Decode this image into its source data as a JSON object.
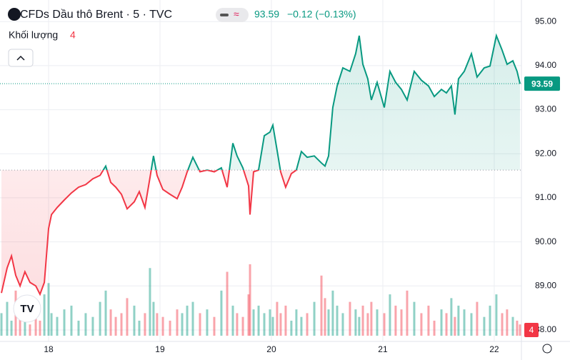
{
  "chart_data": {
    "type": "line",
    "title": "CFDs Dầu thô Brent · 5 · TVC",
    "price": 93.59,
    "change": "−0.12 (−0.13%)",
    "volume_title": "Khối lượng",
    "volume_current": 4,
    "baseline": 91.63,
    "up_color": "#089981",
    "down_color": "#f23645",
    "xlim": [
      17.564,
      22.244
    ],
    "xticks": [
      18,
      19,
      20,
      21,
      22
    ],
    "ylim": [
      87.74,
      95.49
    ],
    "yticks": [
      {
        "value": 88,
        "label": "88.00"
      },
      {
        "value": 89,
        "label": "89.00"
      },
      {
        "value": 90,
        "label": "90.00"
      },
      {
        "value": 91,
        "label": "91.00"
      },
      {
        "value": 92,
        "label": "92.00"
      },
      {
        "value": 93,
        "label": "93.00"
      },
      {
        "value": 94,
        "label": "94.00"
      },
      {
        "value": 95,
        "label": "95.00"
      }
    ],
    "grid": true,
    "x": [
      17.577,
      17.628,
      17.667,
      17.705,
      17.744,
      17.788,
      17.833,
      17.885,
      17.923,
      17.962,
      18.0,
      18.026,
      18.077,
      18.141,
      18.205,
      18.269,
      18.333,
      18.397,
      18.462,
      18.513,
      18.558,
      18.603,
      18.654,
      18.705,
      18.769,
      18.814,
      18.865,
      18.91,
      18.942,
      18.974,
      19.026,
      19.09,
      19.154,
      19.199,
      19.244,
      19.295,
      19.359,
      19.423,
      19.487,
      19.551,
      19.603,
      19.654,
      19.692,
      19.744,
      19.795,
      19.808,
      19.84,
      19.885,
      19.936,
      19.987,
      20.013,
      20.051,
      20.083,
      20.128,
      20.179,
      20.224,
      20.269,
      20.321,
      20.385,
      20.449,
      20.481,
      20.513,
      20.551,
      20.59,
      20.641,
      20.705,
      20.756,
      20.788,
      20.821,
      20.865,
      20.897,
      20.949,
      21.013,
      21.064,
      21.115,
      21.167,
      21.218,
      21.282,
      21.346,
      21.41,
      21.462,
      21.526,
      21.571,
      21.615,
      21.647,
      21.679,
      21.731,
      21.795,
      21.846,
      21.91,
      21.962,
      22.019,
      22.071,
      22.115,
      22.167,
      22.205,
      22.231
    ],
    "series": [
      {
        "name": "Price",
        "values": [
          88.84,
          89.41,
          89.68,
          89.24,
          89.0,
          89.32,
          89.08,
          89.0,
          88.81,
          89.08,
          90.3,
          90.62,
          90.78,
          90.95,
          91.11,
          91.24,
          91.3,
          91.43,
          91.51,
          91.72,
          91.35,
          91.24,
          91.08,
          90.75,
          90.91,
          91.14,
          90.78,
          91.46,
          91.95,
          91.51,
          91.19,
          91.08,
          90.98,
          91.24,
          91.59,
          91.92,
          91.59,
          91.63,
          91.59,
          91.68,
          91.24,
          92.24,
          91.95,
          91.68,
          91.27,
          90.62,
          91.59,
          91.63,
          92.41,
          92.49,
          92.65,
          92.08,
          91.59,
          91.24,
          91.55,
          91.63,
          92.05,
          91.92,
          91.95,
          91.79,
          91.72,
          91.95,
          93.05,
          93.54,
          93.95,
          93.87,
          94.27,
          94.68,
          94.03,
          93.7,
          93.22,
          93.62,
          93.05,
          93.87,
          93.62,
          93.46,
          93.22,
          93.87,
          93.67,
          93.54,
          93.3,
          93.46,
          93.38,
          93.54,
          92.89,
          93.7,
          93.87,
          94.27,
          93.74,
          93.95,
          93.99,
          94.68,
          94.35,
          94.03,
          94.11,
          93.87,
          93.59
        ]
      },
      {
        "name": "Volume",
        "values": [
          30,
          45,
          20,
          60,
          25,
          35,
          15,
          40,
          20,
          55,
          70,
          30,
          25,
          35,
          40,
          20,
          30,
          25,
          45,
          60,
          35,
          25,
          30,
          50,
          40,
          20,
          30,
          90,
          45,
          30,
          25,
          20,
          35,
          30,
          40,
          45,
          30,
          35,
          25,
          60,
          85,
          40,
          30,
          25,
          55,
          95,
          35,
          40,
          30,
          35,
          25,
          45,
          30,
          40,
          20,
          35,
          25,
          30,
          45,
          80,
          50,
          35,
          60,
          40,
          30,
          45,
          35,
          25,
          40,
          30,
          45,
          35,
          30,
          55,
          40,
          35,
          60,
          45,
          30,
          40,
          20,
          35,
          30,
          50,
          25,
          40,
          35,
          30,
          45,
          25,
          40,
          55,
          30,
          35,
          25,
          20,
          15
        ]
      }
    ]
  }
}
